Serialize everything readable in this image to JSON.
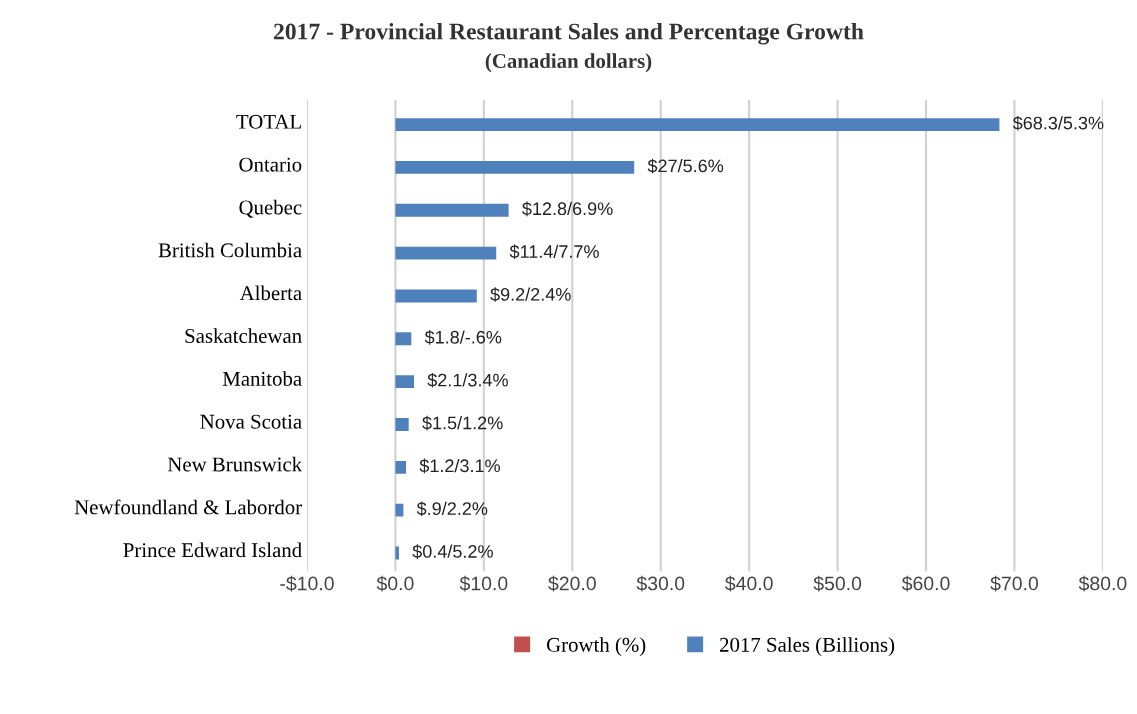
{
  "chart_data": {
    "type": "bar",
    "orientation": "horizontal",
    "title": "2017 - Provincial Restaurant Sales and Percentage Growth",
    "subtitle": "(Canadian dollars)",
    "categories": [
      "TOTAL",
      "Ontario",
      "Quebec",
      "British Columbia",
      "Alberta",
      "Saskatchewan",
      "Manitoba",
      "Nova Scotia",
      "New Brunswick",
      "Newfoundland & Labordor",
      "Prince Edward Island"
    ],
    "series": [
      {
        "name": "Growth (%)",
        "color": "#c0504d",
        "values": [
          null,
          null,
          null,
          null,
          null,
          null,
          null,
          null,
          null,
          null,
          null
        ]
      },
      {
        "name": "2017 Sales (Billions)",
        "color": "#4f81bd",
        "values": [
          68.3,
          27,
          12.8,
          11.4,
          9.2,
          1.8,
          2.1,
          1.5,
          1.2,
          0.9,
          0.4
        ],
        "value_labels": [
          "$68.3/5.3%",
          "$27/5.6%",
          "$12.8/6.9%",
          "$11.4/7.7%",
          "$9.2/2.4%",
          "$1.8/-.6%",
          "$2.1/3.4%",
          "$1.5/1.2%",
          "$1.2/3.1%",
          "$.9/2.2%",
          "$0.4/5.2%"
        ]
      }
    ],
    "xlim": [
      -10,
      80
    ],
    "xticks": [
      {
        "value": -10,
        "label": "-$10.0"
      },
      {
        "value": 0,
        "label": "$0.0"
      },
      {
        "value": 10,
        "label": "$10.0"
      },
      {
        "value": 20,
        "label": "$20.0"
      },
      {
        "value": 30,
        "label": "$30.0"
      },
      {
        "value": 40,
        "label": "$40.0"
      },
      {
        "value": 50,
        "label": "$50.0"
      },
      {
        "value": 60,
        "label": "$60.0"
      },
      {
        "value": 70,
        "label": "$70.0"
      },
      {
        "value": 80,
        "label": "$80.0"
      }
    ],
    "grid": "x",
    "legend": "bottom"
  }
}
